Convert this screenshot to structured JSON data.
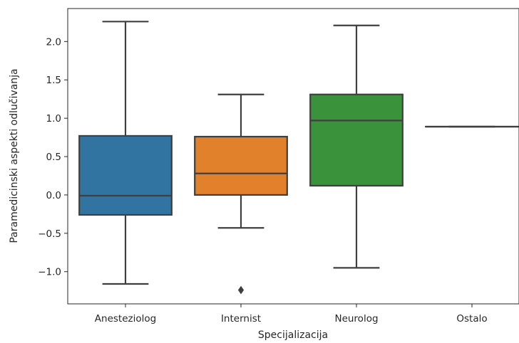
{
  "chart_data": {
    "type": "box",
    "title": "",
    "xlabel": "Specijalizacija",
    "ylabel": "Paramedicinski aspekti odlučivanja",
    "categories": [
      "Anesteziolog",
      "Internist",
      "Neurolog",
      "Ostalo"
    ],
    "ylim": [
      -1.42,
      2.43
    ],
    "yticks": [
      -1.0,
      -0.5,
      0.0,
      0.5,
      1.0,
      1.5,
      2.0
    ],
    "ytick_labels": [
      "−1.0",
      "−0.5",
      "0.0",
      "0.5",
      "1.0",
      "1.5",
      "2.0"
    ],
    "grid": false,
    "boxes": [
      {
        "category": "Anesteziolog",
        "whisker_low": -1.16,
        "q1": -0.26,
        "median": -0.01,
        "q3": 0.77,
        "whisker_high": 2.26,
        "outliers": [],
        "color": "#3274a1"
      },
      {
        "category": "Internist",
        "whisker_low": -0.43,
        "q1": 0.0,
        "median": 0.28,
        "q3": 0.76,
        "whisker_high": 1.31,
        "outliers": [
          -1.24
        ],
        "color": "#e1812c"
      },
      {
        "category": "Neurolog",
        "whisker_low": -0.95,
        "q1": 0.12,
        "median": 0.97,
        "q3": 1.31,
        "whisker_high": 2.21,
        "outliers": [],
        "color": "#3a923a"
      },
      {
        "category": "Ostalo",
        "whisker_low": 0.89,
        "q1": 0.89,
        "median": 0.89,
        "q3": 0.89,
        "whisker_high": 0.89,
        "outliers": [],
        "color": "#c03d3e"
      }
    ],
    "line_color": "#3f3f3f"
  }
}
